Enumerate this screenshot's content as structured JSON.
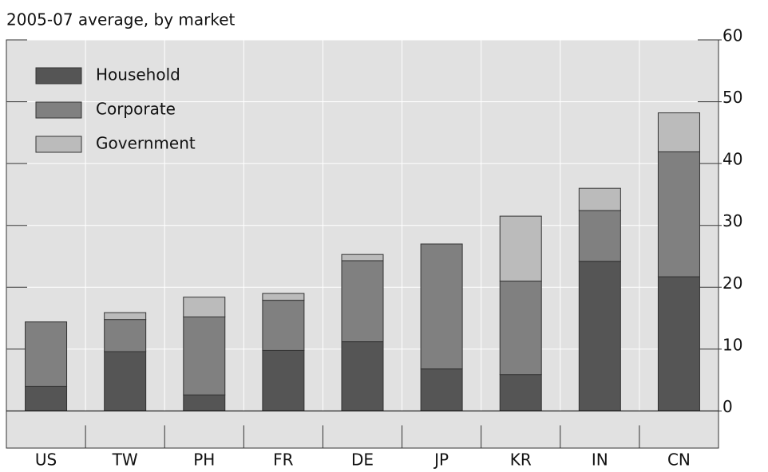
{
  "chart_data": {
    "type": "bar",
    "stacked": true,
    "subtitle": "2005-07 average, by market",
    "categories": [
      "US",
      "TW",
      "PH",
      "FR",
      "DE",
      "JP",
      "KR",
      "IN",
      "CN"
    ],
    "series": [
      {
        "name": "Household",
        "color": "#555555",
        "values": [
          4.0,
          9.6,
          2.6,
          9.8,
          11.2,
          6.8,
          5.9,
          24.2,
          21.7
        ]
      },
      {
        "name": "Corporate",
        "color": "#808080",
        "values": [
          10.4,
          5.2,
          12.6,
          8.1,
          13.1,
          20.2,
          15.1,
          8.2,
          20.2
        ]
      },
      {
        "name": "Government",
        "color": "#bbbbbb",
        "values": [
          0,
          1.1,
          3.2,
          1.1,
          1.0,
          0,
          10.5,
          3.6,
          6.3
        ]
      }
    ],
    "ylim": [
      -6,
      60
    ],
    "yticks": [
      0,
      10,
      20,
      30,
      40,
      50,
      60
    ],
    "grid": true,
    "legend": "top-left"
  }
}
